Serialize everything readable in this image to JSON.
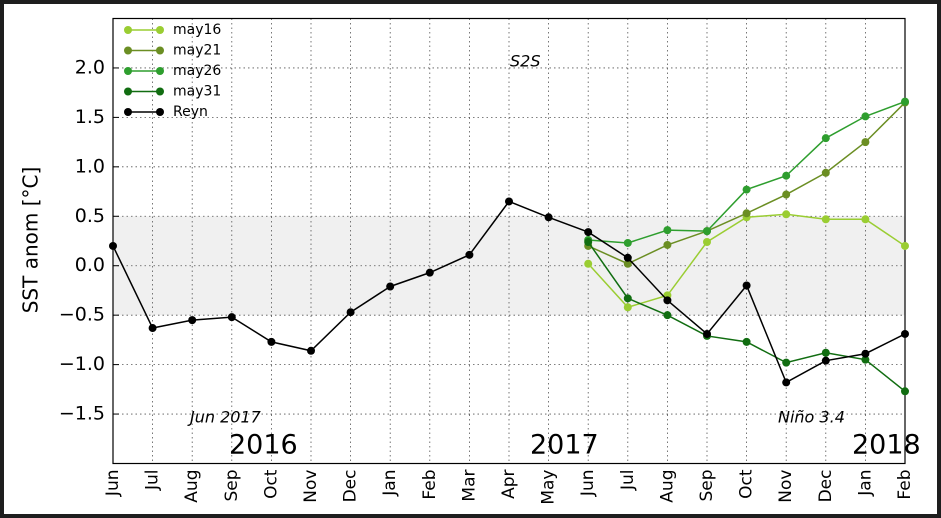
{
  "chart_data": {
    "type": "line",
    "ylabel": "SST anom [°C]",
    "annotations": [
      "S2S",
      "Jun 2017",
      "Niño 3.4",
      "2016",
      "2017",
      "2018"
    ],
    "categories": [
      "Jun",
      "Jul",
      "Aug",
      "Sep",
      "Oct",
      "Nov",
      "Dec",
      "Jan",
      "Feb",
      "Mar",
      "Apr",
      "May",
      "Jun",
      "Jul",
      "Aug",
      "Sep",
      "Oct",
      "Nov",
      "Dec",
      "Jan",
      "Feb"
    ],
    "series": [
      {
        "name": "may16",
        "color": "#9acd32",
        "values": [
          null,
          null,
          null,
          null,
          null,
          null,
          null,
          null,
          null,
          null,
          null,
          null,
          0.02,
          -0.42,
          -0.3,
          0.24,
          0.49,
          0.52,
          0.47,
          0.47,
          0.2
        ]
      },
      {
        "name": "may21",
        "color": "#6b8e23",
        "values": [
          null,
          null,
          null,
          null,
          null,
          null,
          null,
          null,
          null,
          null,
          null,
          null,
          0.2,
          0.02,
          0.21,
          0.35,
          0.53,
          0.72,
          0.94,
          1.25,
          1.65
        ]
      },
      {
        "name": "may26",
        "color": "#2e9e2e",
        "values": [
          null,
          null,
          null,
          null,
          null,
          null,
          null,
          null,
          null,
          null,
          null,
          null,
          0.26,
          0.23,
          0.36,
          0.35,
          0.77,
          0.91,
          1.29,
          1.51,
          1.66
        ]
      },
      {
        "name": "may31",
        "color": "#116d11",
        "values": [
          null,
          null,
          null,
          null,
          null,
          null,
          null,
          null,
          null,
          null,
          null,
          null,
          0.24,
          -0.33,
          -0.5,
          -0.71,
          -0.77,
          -0.98,
          -0.88,
          -0.95,
          -1.27
        ]
      },
      {
        "name": "Reyn",
        "color": "#000000",
        "values": [
          0.2,
          -0.63,
          -0.55,
          -0.52,
          -0.77,
          -0.86,
          -0.47,
          -0.21,
          -0.07,
          0.11,
          0.65,
          0.49,
          0.34,
          0.08,
          -0.35,
          -0.69,
          -0.2,
          -1.18,
          -0.96,
          -0.89,
          -0.69
        ]
      }
    ],
    "shade": [
      -0.5,
      0.5
    ],
    "ylim": [
      -2,
      2.5
    ],
    "yticks": [
      {
        "value": -1.5,
        "label": "−1.5"
      },
      {
        "value": -1,
        "label": "−1.0"
      },
      {
        "value": -0.5,
        "label": "−0.5"
      },
      {
        "value": 0,
        "label": "0.0"
      },
      0.5,
      {
        "value": 1,
        "label": "1.0"
      },
      1.5,
      {
        "value": 2,
        "label": "2.0"
      }
    ],
    "grid": true,
    "legend": "upper left"
  }
}
